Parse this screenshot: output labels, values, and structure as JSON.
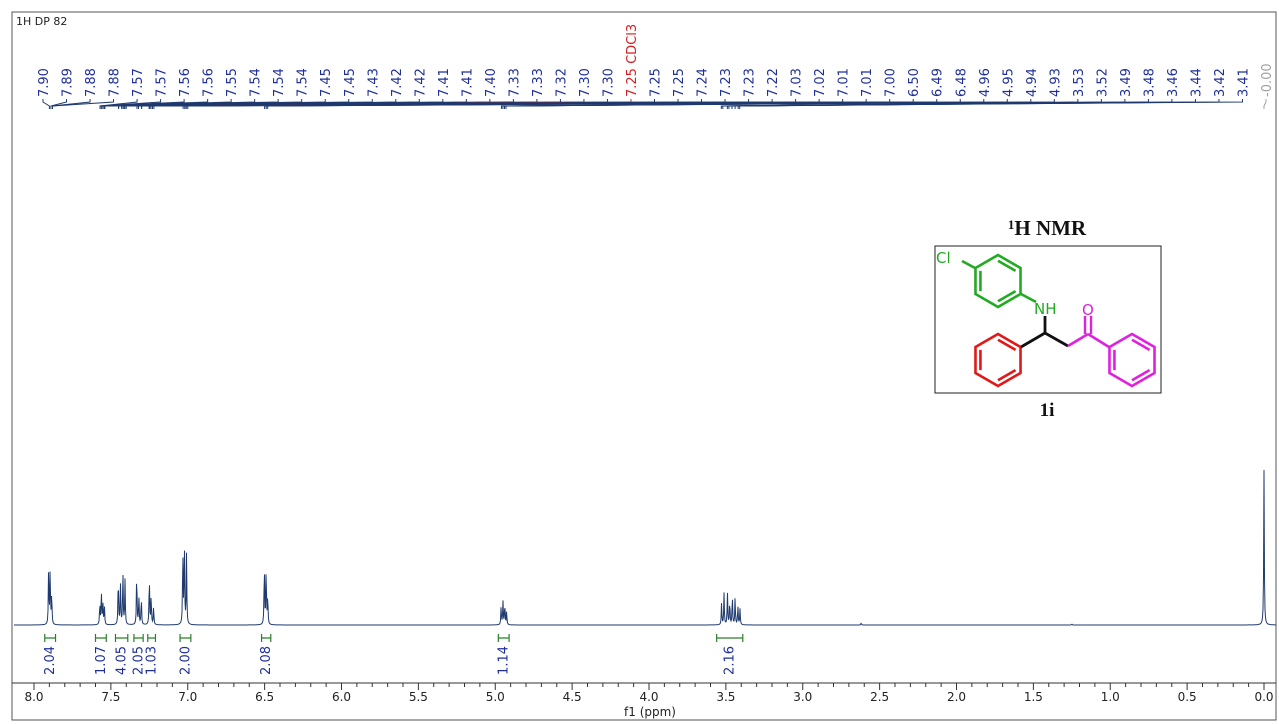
{
  "chart_data": {
    "type": "line",
    "experiment": "1H DP 82",
    "title": "1H NMR",
    "compound_label": "1i",
    "xlabel": "f1 (ppm)",
    "xlim": [
      8.0,
      0.0
    ],
    "x_ticks": [
      "8.0",
      "7.5",
      "7.0",
      "6.5",
      "6.0",
      "5.5",
      "5.0",
      "4.5",
      "4.0",
      "3.5",
      "3.0",
      "2.5",
      "2.0",
      "1.5",
      "1.0",
      "0.5",
      "0.0"
    ],
    "peak_labels": [
      {
        "ppm": 7.9,
        "text": "7.90"
      },
      {
        "ppm": 7.89,
        "text": "7.89"
      },
      {
        "ppm": 7.88,
        "text": "7.88"
      },
      {
        "ppm": 7.88,
        "text": "7.88"
      },
      {
        "ppm": 7.57,
        "text": "7.57"
      },
      {
        "ppm": 7.57,
        "text": "7.57"
      },
      {
        "ppm": 7.56,
        "text": "7.56"
      },
      {
        "ppm": 7.56,
        "text": "7.56"
      },
      {
        "ppm": 7.55,
        "text": "7.55"
      },
      {
        "ppm": 7.54,
        "text": "7.54"
      },
      {
        "ppm": 7.54,
        "text": "7.54"
      },
      {
        "ppm": 7.54,
        "text": "7.54"
      },
      {
        "ppm": 7.45,
        "text": "7.45"
      },
      {
        "ppm": 7.45,
        "text": "7.45"
      },
      {
        "ppm": 7.43,
        "text": "7.43"
      },
      {
        "ppm": 7.42,
        "text": "7.42"
      },
      {
        "ppm": 7.42,
        "text": "7.42"
      },
      {
        "ppm": 7.41,
        "text": "7.41"
      },
      {
        "ppm": 7.41,
        "text": "7.41"
      },
      {
        "ppm": 7.4,
        "text": "7.40"
      },
      {
        "ppm": 7.33,
        "text": "7.33"
      },
      {
        "ppm": 7.33,
        "text": "7.33"
      },
      {
        "ppm": 7.32,
        "text": "7.32"
      },
      {
        "ppm": 7.3,
        "text": "7.30"
      },
      {
        "ppm": 7.3,
        "text": "7.30"
      },
      {
        "ppm": 7.25,
        "text": "7.25 CDCl3",
        "solvent": true
      },
      {
        "ppm": 7.25,
        "text": "7.25"
      },
      {
        "ppm": 7.25,
        "text": "7.25"
      },
      {
        "ppm": 7.24,
        "text": "7.24"
      },
      {
        "ppm": 7.23,
        "text": "7.23"
      },
      {
        "ppm": 7.23,
        "text": "7.23"
      },
      {
        "ppm": 7.22,
        "text": "7.22"
      },
      {
        "ppm": 7.03,
        "text": "7.03"
      },
      {
        "ppm": 7.02,
        "text": "7.02"
      },
      {
        "ppm": 7.01,
        "text": "7.01"
      },
      {
        "ppm": 7.01,
        "text": "7.01"
      },
      {
        "ppm": 7.0,
        "text": "7.00"
      },
      {
        "ppm": 6.5,
        "text": "6.50"
      },
      {
        "ppm": 6.49,
        "text": "6.49"
      },
      {
        "ppm": 6.48,
        "text": "6.48"
      },
      {
        "ppm": 4.96,
        "text": "4.96"
      },
      {
        "ppm": 4.95,
        "text": "4.95"
      },
      {
        "ppm": 4.94,
        "text": "4.94"
      },
      {
        "ppm": 4.93,
        "text": "4.93"
      },
      {
        "ppm": 3.53,
        "text": "3.53"
      },
      {
        "ppm": 3.52,
        "text": "3.52"
      },
      {
        "ppm": 3.49,
        "text": "3.49"
      },
      {
        "ppm": 3.48,
        "text": "3.48"
      },
      {
        "ppm": 3.46,
        "text": "3.46"
      },
      {
        "ppm": 3.44,
        "text": "3.44"
      },
      {
        "ppm": 3.42,
        "text": "3.42"
      },
      {
        "ppm": 3.41,
        "text": "3.41"
      },
      {
        "ppm": 0.0,
        "text": "-0.00",
        "reference": true
      }
    ],
    "integrals": [
      {
        "from": 7.93,
        "to": 7.86,
        "value": "2.04"
      },
      {
        "from": 7.6,
        "to": 7.53,
        "value": "1.07"
      },
      {
        "from": 7.47,
        "to": 7.39,
        "value": "4.05"
      },
      {
        "from": 7.35,
        "to": 7.29,
        "value": "2.05"
      },
      {
        "from": 7.26,
        "to": 7.21,
        "value": "1.03"
      },
      {
        "from": 7.05,
        "to": 6.98,
        "value": "2.00"
      },
      {
        "from": 6.52,
        "to": 6.46,
        "value": "2.08"
      },
      {
        "from": 4.98,
        "to": 4.91,
        "value": "1.14"
      },
      {
        "from": 3.56,
        "to": 3.39,
        "value": "2.16"
      }
    ],
    "peaks": [
      {
        "ppm": 7.905,
        "h": 0.55
      },
      {
        "ppm": 7.895,
        "h": 0.58
      },
      {
        "ppm": 7.885,
        "h": 0.32
      },
      {
        "ppm": 7.572,
        "h": 0.22
      },
      {
        "ppm": 7.562,
        "h": 0.35
      },
      {
        "ppm": 7.552,
        "h": 0.22
      },
      {
        "ppm": 7.542,
        "h": 0.18
      },
      {
        "ppm": 7.452,
        "h": 0.5
      },
      {
        "ppm": 7.438,
        "h": 0.42
      },
      {
        "ppm": 7.422,
        "h": 0.55
      },
      {
        "ppm": 7.408,
        "h": 0.45
      },
      {
        "ppm": 7.332,
        "h": 0.55
      },
      {
        "ppm": 7.318,
        "h": 0.3
      },
      {
        "ppm": 7.302,
        "h": 0.28
      },
      {
        "ppm": 7.25,
        "h": 0.5
      },
      {
        "ppm": 7.238,
        "h": 0.3
      },
      {
        "ppm": 7.222,
        "h": 0.18
      },
      {
        "ppm": 7.032,
        "h": 0.78
      },
      {
        "ppm": 7.022,
        "h": 0.8
      },
      {
        "ppm": 7.008,
        "h": 0.7
      },
      {
        "ppm": 6.502,
        "h": 0.62
      },
      {
        "ppm": 6.49,
        "h": 0.58
      },
      {
        "ppm": 6.48,
        "h": 0.3
      },
      {
        "ppm": 4.962,
        "h": 0.18
      },
      {
        "ppm": 4.95,
        "h": 0.24
      },
      {
        "ppm": 4.938,
        "h": 0.22
      },
      {
        "ppm": 4.926,
        "h": 0.14
      },
      {
        "ppm": 3.528,
        "h": 0.22
      },
      {
        "ppm": 3.512,
        "h": 0.32
      },
      {
        "ppm": 3.49,
        "h": 0.33
      },
      {
        "ppm": 3.475,
        "h": 0.25
      },
      {
        "ppm": 3.458,
        "h": 0.3
      },
      {
        "ppm": 3.44,
        "h": 0.28
      },
      {
        "ppm": 3.422,
        "h": 0.2
      },
      {
        "ppm": 3.408,
        "h": 0.16
      },
      {
        "ppm": 2.62,
        "h": 0.02
      },
      {
        "ppm": 1.25,
        "h": 0.01
      },
      {
        "ppm": 0.0,
        "h": 1.55
      }
    ],
    "structure_labels": {
      "cl": "Cl",
      "nh": "NH",
      "o": "O"
    },
    "colors": {
      "spectrum": "#1f3a6e",
      "peak_label": "#1f2f9a",
      "solvent_label": "#d42020",
      "reference_label": "#a0a0a0",
      "integral": "#2a7f2a",
      "integral_value": "#1f2f9a",
      "chlorophenyl": "#22aa22",
      "phenyl": "#e01818",
      "benzoyl": "#e020e0"
    }
  }
}
